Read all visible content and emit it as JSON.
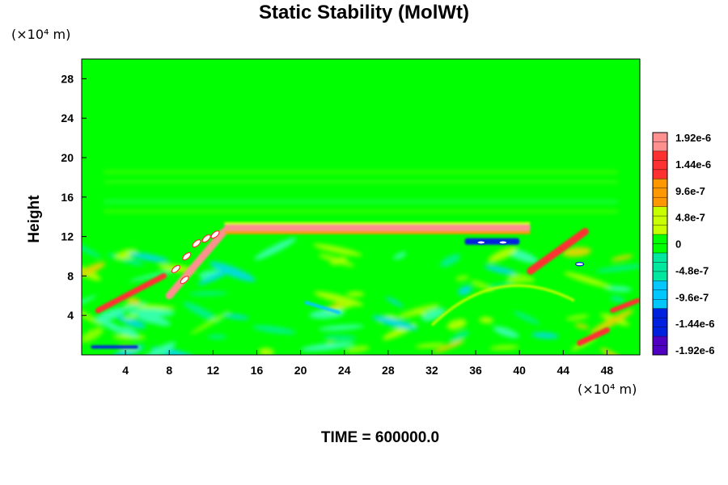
{
  "chart_data": {
    "type": "heatmap",
    "title": "Static Stability (MolWt)",
    "ylabel": "Height",
    "x_unit": "(×10⁴ m)",
    "y_unit": "(×10⁴ m)",
    "xlim": [
      0,
      51
    ],
    "ylim": [
      0,
      30
    ],
    "xticks": [
      4,
      8,
      12,
      16,
      20,
      24,
      28,
      32,
      36,
      40,
      44,
      48
    ],
    "yticks": [
      4,
      8,
      12,
      16,
      20,
      24,
      28
    ],
    "colorbar": {
      "labels": [
        "1.92e-6",
        "1.44e-6",
        "9.6e-7",
        "4.8e-7",
        "0",
        "-4.8e-7",
        "-9.6e-7",
        "-1.44e-6",
        "-1.92e-6"
      ],
      "values": [
        1.92e-06,
        1.44e-06,
        9.6e-07,
        4.8e-07,
        0,
        -4.8e-07,
        -9.6e-07,
        -1.44e-06,
        -1.92e-06
      ],
      "colors": [
        "#ff9090",
        "#ff3030",
        "#ff9800",
        "#c8ff00",
        "#00ff00",
        "#00e8a0",
        "#00c8ff",
        "#0020e0",
        "#5000c0"
      ]
    },
    "background_color": "#00ff00",
    "features": [
      {
        "x_start": 13,
        "x_end": 41,
        "y": 12.9,
        "value": 1.92e-06
      },
      {
        "x_start": 8,
        "x_end": 13,
        "y_start": 6,
        "y_end": 12.5,
        "value": 1.92e-06
      },
      {
        "x_start": 41,
        "x_end": 46,
        "y_start": 8.5,
        "y_end": 12.5,
        "value": 1.44e-06
      },
      {
        "x_start": 35,
        "x_end": 40,
        "y": 11.5,
        "value": -1.44e-06
      }
    ],
    "time_label": "TIME = 600000.0"
  }
}
